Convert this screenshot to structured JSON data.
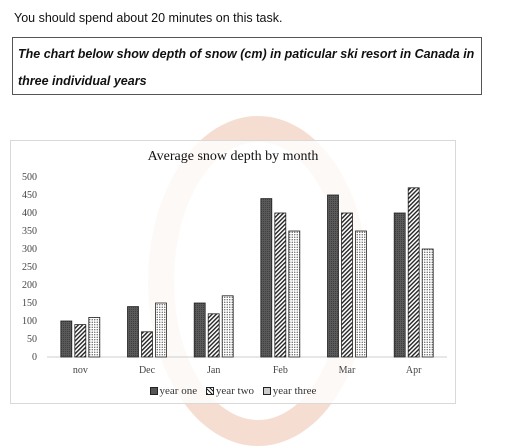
{
  "instruction": "You should spend about 20 minutes on this task.",
  "task": "The chart below show depth of snow (cm) in paticular ski resort in Canada in three individual years",
  "chart_data": {
    "type": "bar",
    "title": "Average snow depth by month",
    "categories": [
      "nov",
      "Dec",
      "Jan",
      "Feb",
      "Mar",
      "Apr"
    ],
    "series": [
      {
        "name": "year one",
        "values": [
          100,
          140,
          150,
          440,
          450,
          400
        ]
      },
      {
        "name": "year two",
        "values": [
          90,
          70,
          120,
          400,
          400,
          470
        ]
      },
      {
        "name": "year three",
        "values": [
          110,
          150,
          170,
          350,
          350,
          300
        ]
      }
    ],
    "yticks": [
      "0",
      "50",
      "100",
      "150",
      "200",
      "250",
      "300",
      "350",
      "400",
      "450",
      "500"
    ],
    "ylim": [
      0,
      500
    ],
    "legend_position": "bottom",
    "grid": false
  }
}
